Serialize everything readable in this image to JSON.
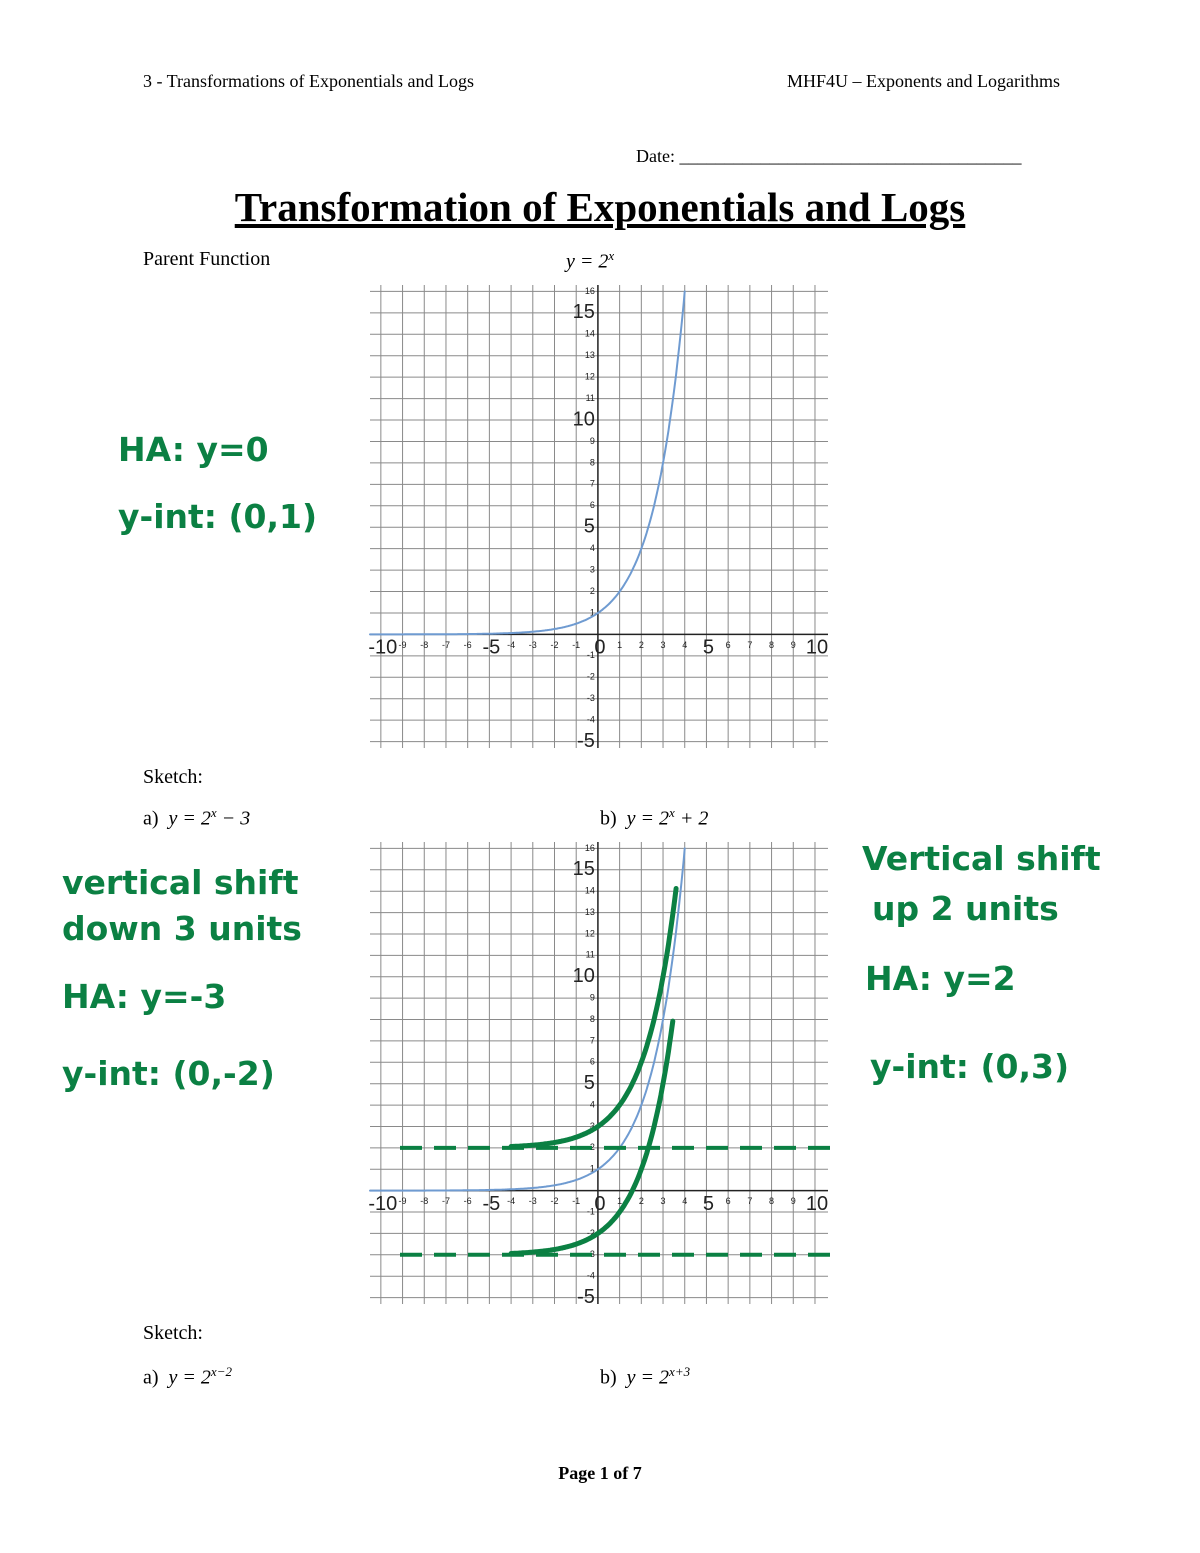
{
  "header": {
    "left": "3 - Transformations of Exponentials and Logs",
    "right": "MHF4U – Exponents and Logarithms"
  },
  "date": "Date: ______________________________________",
  "title": "Transformation of Exponentials and Logs",
  "parent_function": {
    "label": "Parent Function",
    "equation": {
      "lhs": "y = 2",
      "exponent": "x"
    }
  },
  "sketch_1": {
    "label": "Sketch:",
    "a": {
      "label": "a)",
      "lhs": "y = 2",
      "exponent": "x",
      "rest": " − 3"
    },
    "b": {
      "label": "b)",
      "lhs": "y = 2",
      "exponent": "x",
      "rest": " + 2"
    }
  },
  "sketch_2": {
    "label": "Sketch:",
    "a": {
      "label": "a)",
      "lhs": "y = 2",
      "exponent": "x−2"
    },
    "b": {
      "label": "b)",
      "lhs": "y = 2",
      "exponent": "x+3"
    }
  },
  "notes_1": [
    "HA: y=0",
    "y-int: (0,1)"
  ],
  "notes_2_left": [
    "vertical shift",
    "down 3 units",
    "HA: y=-3",
    "y-int: (0,-2)"
  ],
  "notes_2_right": [
    "Vertical shift",
    "up 2 units",
    "HA: y=2",
    "y-int: (0,3)"
  ],
  "graphs": [
    {
      "xlim": [
        -10.5,
        10.6
      ],
      "ylim": [
        -5.3,
        16.3
      ],
      "xticks": [
        -10,
        -9,
        -8,
        -7,
        -6,
        -5,
        -4,
        -3,
        -2,
        -1,
        0,
        1,
        2,
        3,
        4,
        5,
        6,
        7,
        8,
        9,
        10
      ],
      "yticks": [
        -5,
        -4,
        -3,
        -2,
        -1,
        1,
        2,
        3,
        4,
        5,
        6,
        7,
        8,
        9,
        10,
        11,
        12,
        13,
        14,
        15,
        16
      ],
      "curves": [
        {
          "base": 2,
          "shift_y": 0,
          "color": "#6f9bd1"
        }
      ],
      "asymptotes": []
    },
    {
      "xlim": [
        -10.5,
        10.6
      ],
      "ylim": [
        -5.3,
        16.3
      ],
      "xticks": [
        -10,
        -9,
        -8,
        -7,
        -6,
        -5,
        -4,
        -3,
        -2,
        -1,
        0,
        1,
        2,
        3,
        4,
        5,
        6,
        7,
        8,
        9,
        10
      ],
      "yticks": [
        -5,
        -4,
        -3,
        -2,
        -1,
        1,
        2,
        3,
        4,
        5,
        6,
        7,
        8,
        9,
        10,
        11,
        12,
        13,
        14,
        15,
        16
      ],
      "curves": [
        {
          "base": 2,
          "shift_y": 0,
          "color": "#6f9bd1"
        },
        {
          "base": 2,
          "shift_y": 2,
          "x_from": -4,
          "y_max": 14.5,
          "color": "#0b8043"
        },
        {
          "base": 2,
          "shift_y": -3,
          "x_from": -4,
          "y_max": 8,
          "color": "#0b8043"
        }
      ],
      "asymptotes": [
        {
          "y": 2,
          "color": "#0b8043"
        },
        {
          "y": -3,
          "color": "#0b8043"
        }
      ]
    }
  ],
  "footer": "Page 1 of 7"
}
